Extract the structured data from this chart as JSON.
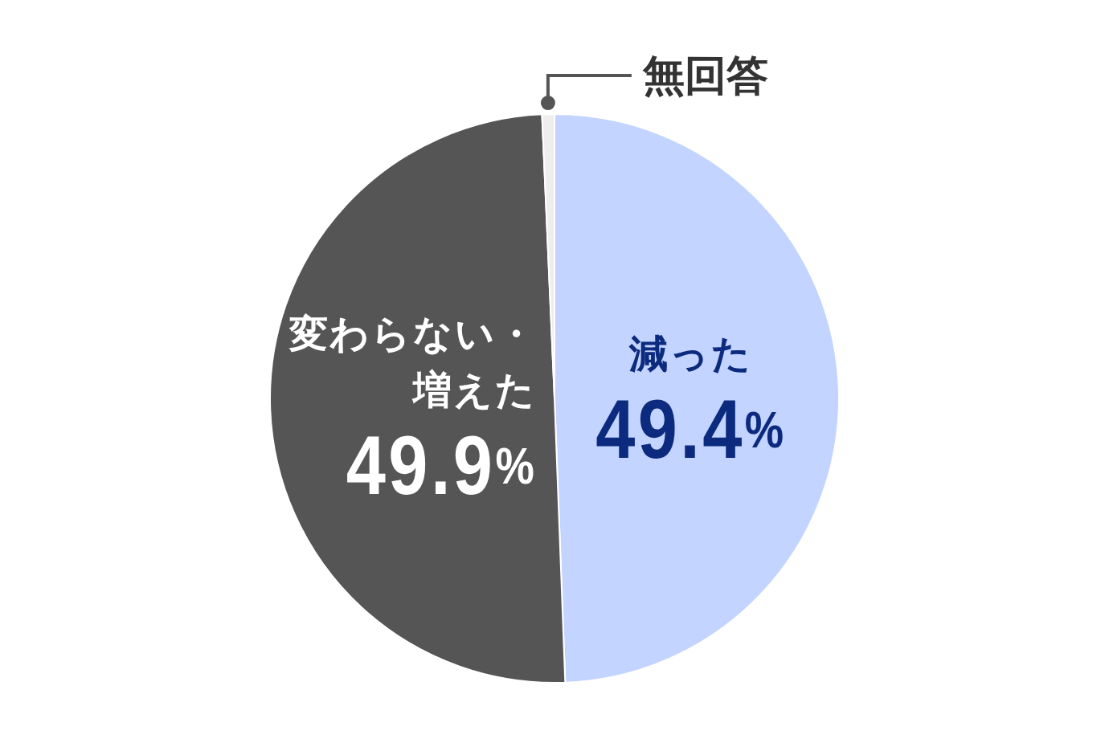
{
  "chart_data": {
    "type": "pie",
    "categories": [
      "減った",
      "変わらない・増えた",
      "無回答"
    ],
    "values": [
      49.4,
      49.9,
      0.7
    ],
    "colors": [
      "#c2d4ff",
      "#555555",
      "#eeeeee"
    ],
    "value_labels": [
      "49.4%",
      "49.9%",
      null
    ]
  }
}
